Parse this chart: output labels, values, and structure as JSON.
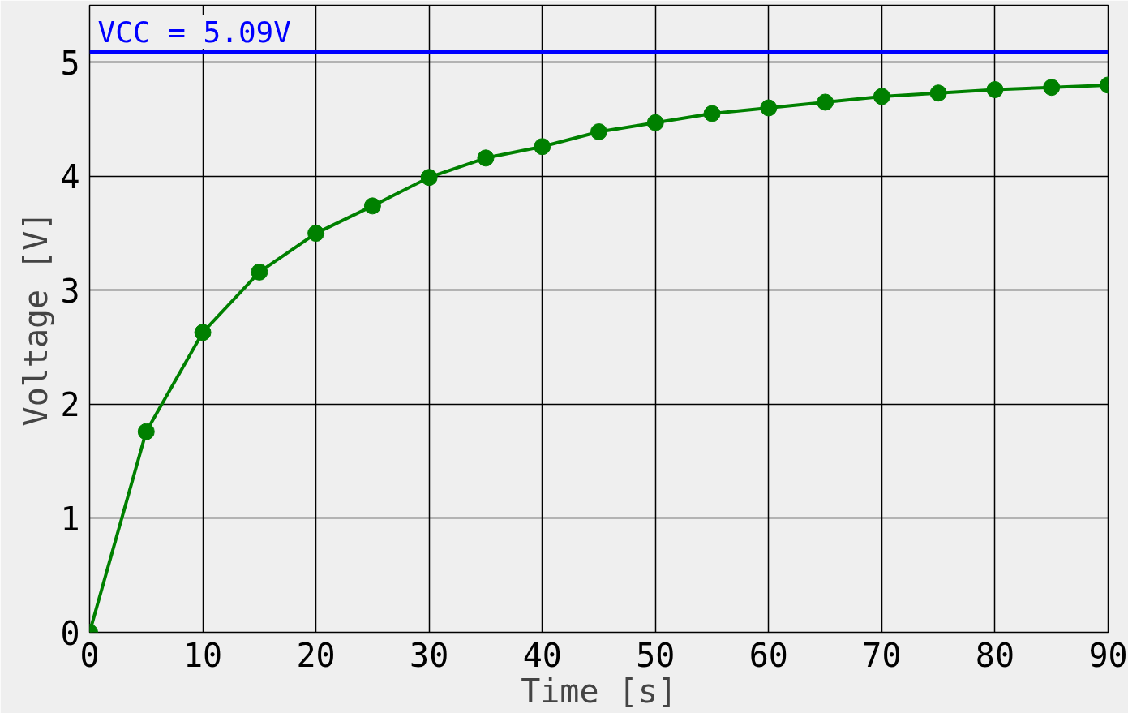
{
  "chart_data": {
    "type": "line",
    "xlabel": "Time [s]",
    "ylabel": "Voltage [V]",
    "x": [
      0,
      5,
      10,
      15,
      20,
      25,
      30,
      35,
      40,
      45,
      50,
      55,
      60,
      65,
      70,
      75,
      80,
      85,
      90
    ],
    "series": [
      {
        "color": "#008000",
        "values": [
          0,
          1.76,
          2.63,
          3.16,
          3.5,
          3.74,
          3.99,
          4.16,
          4.26,
          4.39,
          4.47,
          4.55,
          4.6,
          4.65,
          4.7,
          4.73,
          4.76,
          4.78,
          4.8
        ]
      }
    ],
    "xlim": [
      0,
      90
    ],
    "xticks": [
      0,
      10,
      20,
      30,
      40,
      50,
      60,
      70,
      80,
      90
    ],
    "ylim": [
      0,
      5.5
    ],
    "yticks": [
      0,
      1,
      2,
      3,
      4,
      5
    ],
    "ref_lines": [
      {
        "axis": "y",
        "value": 5.09,
        "label": "VCC = 5.09V",
        "color": "#0000ff"
      }
    ],
    "grid": true,
    "marker": "circle",
    "line_style": "solid"
  }
}
